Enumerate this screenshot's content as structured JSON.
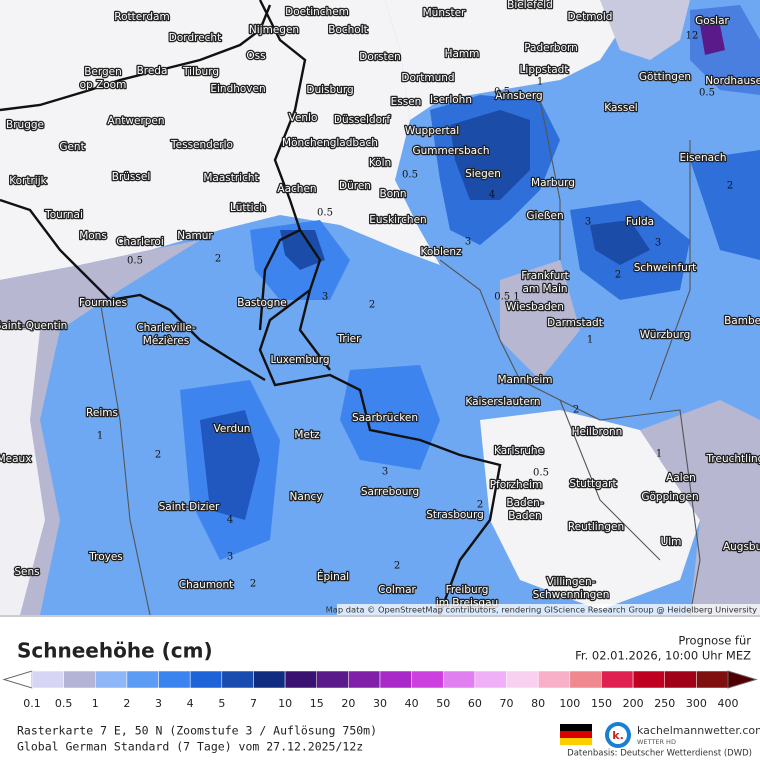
{
  "map": {
    "cities": [
      "Rotterdam",
      "Doetinchem",
      "Münster",
      "Bielefeld",
      "Detmold",
      "Goslar",
      "Dordrecht",
      "Nijmegen",
      "Bocholt",
      "Paderborn",
      [
        "Bergen",
        "op Zoom"
      ],
      "Breda",
      "Oss",
      "Tilburg",
      "Dorsten",
      "Hamm",
      "Lippstadt",
      "Göttingen",
      "Nordhausen",
      "Eindhoven",
      "Dortmund",
      "Duisburg",
      "Essen",
      "Iserlohn",
      "Arnsberg",
      "Kassel",
      "Brugge",
      "Antwerpen",
      "Venlo",
      "Düsseldorf",
      "Wuppertal",
      "Gent",
      "Tessenderlo",
      "Mönchengladbach",
      "Gummersbach",
      "Köln",
      "Eisenach",
      "Kortrijk",
      "Brüssel",
      "Maastricht",
      "Aachen",
      "Düren",
      "Siegen",
      "Marburg",
      "Bonn",
      "Euskirchen",
      "Tournai",
      "Lüttich",
      "Gießen",
      "Fulda",
      "Mons",
      "Charleroi",
      "Namur",
      "Koblenz",
      [
        "Frankfurt",
        "am Main"
      ],
      "Schweinfurt",
      "Fourmies",
      "Bastogne",
      "Wiesbaden",
      "Saint-Quentin",
      [
        "Charleville-",
        "Mézières"
      ],
      "Darmstadt",
      "Bamberg",
      "Würzburg",
      "Trier",
      "Luxemburg",
      "Mannheim",
      "Kaiserslautern",
      "Saarbrücken",
      "Reims",
      "Heilbronn",
      "Verdun",
      "Metz",
      "Karlsruhe",
      "Meaux",
      "Treuchtlingen",
      "Aalen",
      "Pforzheim",
      "Stuttgart",
      "Göppingen",
      "Nancy",
      "Sarrebourg",
      [
        "Baden-",
        "Baden"
      ],
      "Saint-Dizier",
      "Strasbourg",
      "Reutlingen",
      "Ulm",
      "Augsburg",
      "Troyes",
      "Sens",
      "Épinal",
      "Chaumont",
      "Colmar",
      [
        "Villingen-",
        "Schwenningen"
      ],
      [
        "Freiburg",
        "im Breisgau"
      ]
    ],
    "contour_labels": [
      "12",
      "0.5",
      "1",
      "0.5",
      "0.5",
      "2",
      "4",
      "3",
      "0.5",
      "2",
      "3",
      "0.5",
      "2",
      "3",
      "3",
      "2",
      "0.5",
      "1",
      "2",
      "1",
      "2",
      "4",
      "3",
      "2",
      "3",
      "2",
      "2",
      "1",
      "0.5 1"
    ],
    "attribution": "Map data © OpenStreetMap contributors, rendering GIScience Research Group @ Heidelberg University"
  },
  "legend": {
    "title": "Schneehöhe (cm)",
    "labels": [
      "0.1",
      "0.5",
      "1",
      "2",
      "3",
      "4",
      "5",
      "7",
      "10",
      "15",
      "20",
      "30",
      "40",
      "50",
      "60",
      "70",
      "80",
      "100",
      "150",
      "200",
      "250",
      "300",
      "400"
    ],
    "colors": [
      "#ffffff",
      "#d6d6f4",
      "#b4b4d6",
      "#8fb6f6",
      "#5c9cf4",
      "#3a84f0",
      "#1e64d8",
      "#1a4cb0",
      "#102c80",
      "#3a1070",
      "#5a1a8a",
      "#8020a8",
      "#a828c8",
      "#cc40e0",
      "#e080f0",
      "#f0b0f8",
      "#f8d0f0",
      "#f8b0c8",
      "#f08890",
      "#e02050",
      "#c00020",
      "#a00018",
      "#801010",
      "#500000"
    ]
  },
  "forecast": {
    "label": "Prognose für",
    "time": "Fr. 02.01.2026, 10:00 Uhr MEZ"
  },
  "footer": {
    "raster": "Rasterkarte 7 E, 50 N (Zoomstufe 3 / Auflösung 750m)",
    "model": "Global German Standard (7 Tage) vom 27.12.2025/12z",
    "logo_letter": "k.",
    "brand": "kachelmannwetter.com",
    "brand_sub": "WETTER HD",
    "source": "Datenbasis: Deutscher Wetterdienst (DWD)"
  }
}
